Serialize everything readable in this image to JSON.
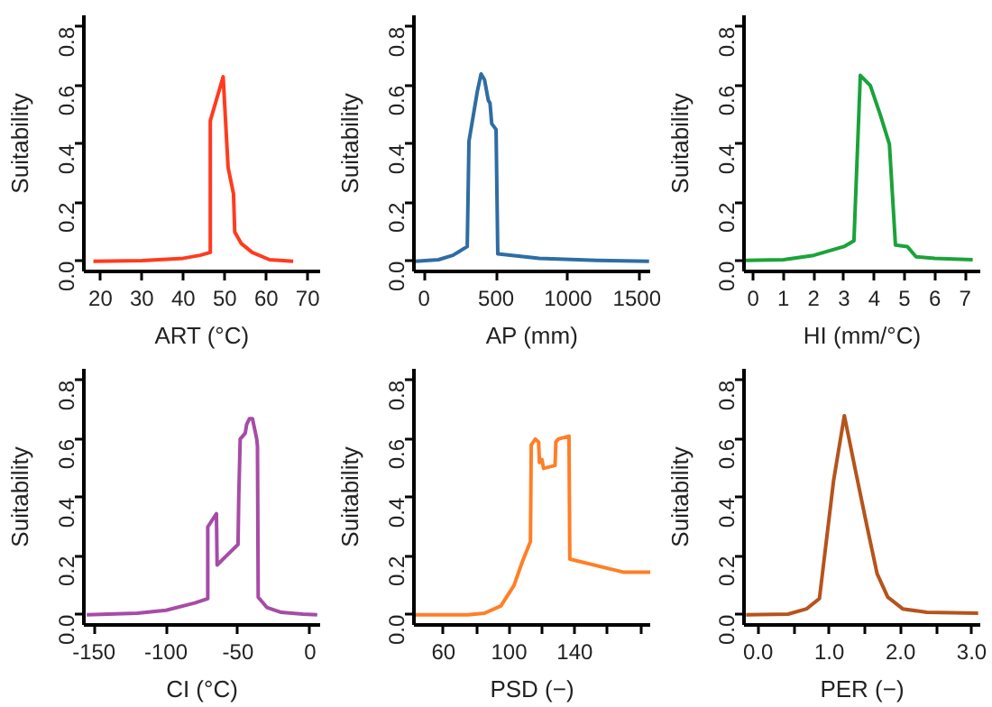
{
  "chart_data": [
    {
      "type": "line",
      "xlabel": "ART (°C)",
      "ylabel": "Suitability",
      "xlim": [
        16,
        73
      ],
      "ylim": [
        -0.035,
        0.84
      ],
      "xticks": [
        20,
        30,
        40,
        50,
        60,
        70
      ],
      "yticks": [
        {
          "value": 0,
          "label": "0.0"
        },
        {
          "value": 0.2,
          "label": "0.2"
        },
        {
          "value": 0.4,
          "label": "0.4"
        },
        {
          "value": 0.6,
          "label": "0.6"
        },
        {
          "value": 0.8,
          "label": "0.8"
        }
      ],
      "grid": false,
      "x": [
        18.3,
        30,
        40,
        44,
        46.5,
        46.5,
        49.6,
        50.8,
        52.1,
        52.4,
        54,
        56.6,
        60.8,
        66.5
      ],
      "series": [
        {
          "color": "#ff3b1f",
          "values": [
            0.0,
            0.002,
            0.01,
            0.02,
            0.03,
            0.48,
            0.63,
            0.32,
            0.23,
            0.1,
            0.06,
            0.03,
            0.005,
            0.0
          ]
        }
      ]
    },
    {
      "type": "line",
      "xlabel": "AP (mm)",
      "ylabel": "Suitability",
      "xlim": [
        -70,
        1570
      ],
      "ylim": [
        -0.035,
        0.84
      ],
      "xticks": [
        0,
        500,
        1000,
        1500
      ],
      "yticks": [
        {
          "value": 0,
          "label": "0.0"
        },
        {
          "value": 0.2,
          "label": "0.2"
        },
        {
          "value": 0.4,
          "label": "0.4"
        },
        {
          "value": 0.6,
          "label": "0.6"
        },
        {
          "value": 0.8,
          "label": "0.8"
        }
      ],
      "grid": false,
      "x": [
        -60,
        100,
        200,
        300,
        312,
        370,
        396,
        420,
        446,
        458,
        470,
        500,
        512,
        800,
        1200,
        1562
      ],
      "series": [
        {
          "color": "#2e6da4",
          "values": [
            0.0,
            0.005,
            0.02,
            0.05,
            0.41,
            0.58,
            0.64,
            0.62,
            0.55,
            0.54,
            0.47,
            0.45,
            0.025,
            0.01,
            0.003,
            0.0
          ]
        }
      ]
    },
    {
      "type": "line",
      "xlabel": "HI (mm/°C)",
      "ylabel": "Suitability",
      "xlim": [
        -0.3,
        7.5
      ],
      "ylim": [
        -0.035,
        0.84
      ],
      "xticks": [
        0,
        1,
        2,
        3,
        4,
        5,
        6,
        7
      ],
      "yticks": [
        {
          "value": 0,
          "label": "0.0"
        },
        {
          "value": 0.2,
          "label": "0.2"
        },
        {
          "value": 0.4,
          "label": "0.4"
        },
        {
          "value": 0.6,
          "label": "0.6"
        },
        {
          "value": 0.8,
          "label": "0.8"
        }
      ],
      "grid": false,
      "x": [
        -0.25,
        1,
        2,
        3,
        3.33,
        3.54,
        3.87,
        4.2,
        4.5,
        4.7,
        5.09,
        5.38,
        6,
        7.25
      ],
      "series": [
        {
          "color": "#1aa33a",
          "values": [
            0.003,
            0.005,
            0.02,
            0.05,
            0.07,
            0.635,
            0.6,
            0.5,
            0.4,
            0.055,
            0.05,
            0.015,
            0.01,
            0.005
          ]
        }
      ]
    },
    {
      "type": "line",
      "xlabel": "CI (°C)",
      "ylabel": "Suitability",
      "xlim": [
        -157,
        7
      ],
      "ylim": [
        -0.035,
        0.84
      ],
      "xticks": [
        -150,
        -100,
        -50,
        0
      ],
      "yticks": [
        {
          "value": 0,
          "label": "0.0"
        },
        {
          "value": 0.2,
          "label": "0.2"
        },
        {
          "value": 0.4,
          "label": "0.4"
        },
        {
          "value": 0.6,
          "label": "0.6"
        },
        {
          "value": 0.8,
          "label": "0.8"
        }
      ],
      "grid": false,
      "x": [
        -155,
        -120,
        -100,
        -80,
        -71,
        -71,
        -65,
        -64.5,
        -50,
        -49.5,
        -48.5,
        -45,
        -44,
        -42,
        -40,
        -37,
        -36.5,
        -36,
        -30,
        -20,
        -5,
        5
      ],
      "series": [
        {
          "color": "#a64ca6",
          "values": [
            0.0,
            0.005,
            0.015,
            0.04,
            0.055,
            0.3,
            0.345,
            0.17,
            0.24,
            0.4,
            0.6,
            0.62,
            0.65,
            0.67,
            0.67,
            0.6,
            0.575,
            0.06,
            0.025,
            0.008,
            0.002,
            0.0
          ]
        }
      ]
    },
    {
      "type": "line",
      "xlabel": "PSD (−)",
      "ylabel": "Suitability",
      "xlim": [
        42,
        186
      ],
      "ylim": [
        -0.035,
        0.84
      ],
      "xticks": [
        60,
        {
          "value": 80,
          "label": null
        },
        100,
        {
          "value": 120,
          "label": null
        },
        140,
        {
          "value": 160,
          "label": null
        },
        {
          "value": 180,
          "label": null
        }
      ],
      "yticks": [
        {
          "value": 0,
          "label": "0.0"
        },
        {
          "value": 0.2,
          "label": "0.2"
        },
        {
          "value": 0.4,
          "label": "0.4"
        },
        {
          "value": 0.6,
          "label": "0.6"
        },
        {
          "value": 0.8,
          "label": "0.8"
        }
      ],
      "grid": false,
      "x": [
        43,
        75,
        85,
        95,
        103,
        108,
        113,
        113.5,
        116,
        118,
        118.5,
        120,
        121,
        128,
        128.5,
        130,
        136.5,
        137,
        170,
        186
      ],
      "series": [
        {
          "color": "#ff7f27",
          "values": [
            0.0,
            0.0,
            0.005,
            0.03,
            0.1,
            0.18,
            0.25,
            0.58,
            0.6,
            0.59,
            0.52,
            0.53,
            0.5,
            0.51,
            0.59,
            0.6,
            0.61,
            0.19,
            0.145,
            0.145
          ]
        }
      ]
    },
    {
      "type": "line",
      "xlabel": "PER (−)",
      "ylabel": "Suitability",
      "xlim": [
        -0.2,
        3.12
      ],
      "ylim": [
        -0.035,
        0.84
      ],
      "xticks": [
        {
          "value": 0,
          "label": "0.0"
        },
        {
          "value": 0.5,
          "label": null
        },
        {
          "value": 1,
          "label": "1.0"
        },
        {
          "value": 1.5,
          "label": null
        },
        {
          "value": 2,
          "label": "2.0"
        },
        {
          "value": 2.5,
          "label": null
        },
        {
          "value": 3,
          "label": "3.0"
        }
      ],
      "yticks": [
        {
          "value": 0,
          "label": "0.0"
        },
        {
          "value": 0.2,
          "label": "0.2"
        },
        {
          "value": 0.4,
          "label": "0.4"
        },
        {
          "value": 0.6,
          "label": "0.6"
        },
        {
          "value": 0.8,
          "label": "0.8"
        }
      ],
      "grid": false,
      "x": [
        -0.17,
        0.42,
        0.68,
        0.86,
        1.06,
        1.21,
        1.36,
        1.53,
        1.67,
        1.82,
        2.03,
        2.37,
        3.09
      ],
      "series": [
        {
          "color": "#b5541c",
          "values": [
            0.0,
            0.002,
            0.02,
            0.055,
            0.46,
            0.68,
            0.5,
            0.3,
            0.14,
            0.06,
            0.02,
            0.008,
            0.005
          ]
        }
      ]
    }
  ]
}
